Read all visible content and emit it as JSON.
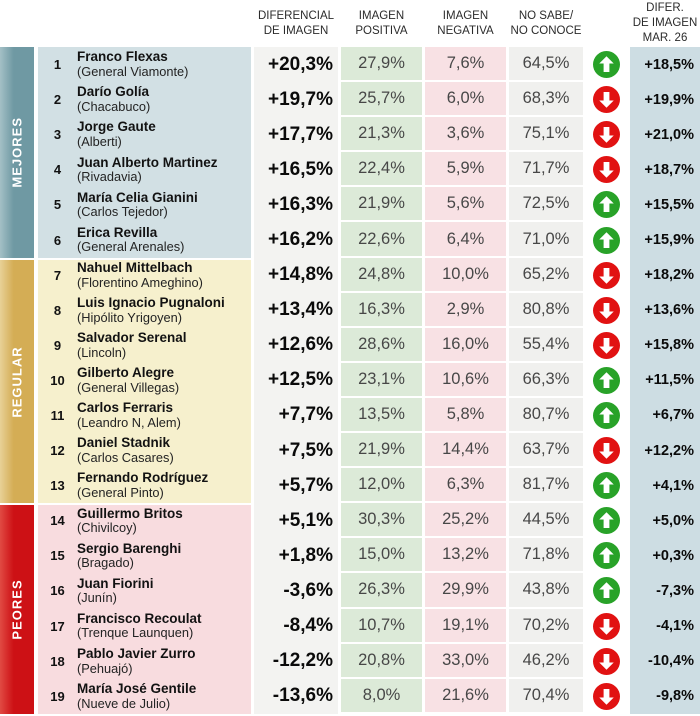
{
  "header": {
    "diferencial": "DIFERENCIAL\nDE IMAGEN",
    "positiva": "IMAGEN\nPOSITIVA",
    "negativa": "IMAGEN\nNEGATIVA",
    "nosabe": "NO SABE/\nNO CONOCE",
    "mar26": "DIFER.\nDE IMAGEN\nMAR. 26"
  },
  "colors": {
    "arrow_up": "#28a228",
    "arrow_down": "#e11212",
    "positiva_bg": "#dcead8",
    "negativa_bg": "#f8e1e4",
    "nosabe_bg": "#f0f0ee",
    "diferencial_bg": "#f3f3f1",
    "mar26_bg": "#cddde3"
  },
  "chart_data": {
    "type": "table",
    "columns": [
      "DIFERENCIAL DE IMAGEN",
      "IMAGEN POSITIVA",
      "IMAGEN NEGATIVA",
      "NO SABE/NO CONOCE",
      "DIFER. DE IMAGEN MAR. 26"
    ],
    "groups": [
      {
        "label": "MEJORES",
        "band_color": "#6f99a3",
        "band_light": "#a4c0c6",
        "row_bg": "#d2e0e4",
        "rows": [
          {
            "rank": "1",
            "name": "Franco Flexas",
            "place": "(General Viamonte)",
            "diferencial": "+20,3%",
            "positiva": "27,9%",
            "negativa": "7,6%",
            "nosabe": "64,5%",
            "trend": "up",
            "mar26": "+18,5%"
          },
          {
            "rank": "2",
            "name": "Darío Golía",
            "place": "(Chacabuco)",
            "diferencial": "+19,7%",
            "positiva": "25,7%",
            "negativa": "6,0%",
            "nosabe": "68,3%",
            "trend": "down",
            "mar26": "+19,9%"
          },
          {
            "rank": "3",
            "name": "Jorge Gaute",
            "place": "(Alberti)",
            "diferencial": "+17,7%",
            "positiva": "21,3%",
            "negativa": "3,6%",
            "nosabe": "75,1%",
            "trend": "down",
            "mar26": "+21,0%"
          },
          {
            "rank": "4",
            "name": "Juan Alberto Martinez",
            "place": "(Rivadavia)",
            "diferencial": "+16,5%",
            "positiva": "22,4%",
            "negativa": "5,9%",
            "nosabe": "71,7%",
            "trend": "down",
            "mar26": "+18,7%"
          },
          {
            "rank": "5",
            "name": "María Celia Gianini",
            "place": "(Carlos Tejedor)",
            "diferencial": "+16,3%",
            "positiva": "21,9%",
            "negativa": "5,6%",
            "nosabe": "72,5%",
            "trend": "up",
            "mar26": "+15,5%"
          },
          {
            "rank": "6",
            "name": "Erica Revilla",
            "place": "(General Arenales)",
            "diferencial": "+16,2%",
            "positiva": "22,6%",
            "negativa": "6,4%",
            "nosabe": "71,0%",
            "trend": "up",
            "mar26": "+15,9%"
          }
        ]
      },
      {
        "label": "REGULAR",
        "band_color": "#d4ad55",
        "band_light": "#e8d197",
        "row_bg": "#f6f0cd",
        "rows": [
          {
            "rank": "7",
            "name": "Nahuel Mittelbach",
            "place": "(Florentino Ameghino)",
            "diferencial": "+14,8%",
            "positiva": "24,8%",
            "negativa": "10,0%",
            "nosabe": "65,2%",
            "trend": "down",
            "mar26": "+18,2%"
          },
          {
            "rank": "8",
            "name": "Luis Ignacio Pugnaloni",
            "place": "(Hipólito Yrigoyen)",
            "diferencial": "+13,4%",
            "positiva": "16,3%",
            "negativa": "2,9%",
            "nosabe": "80,8%",
            "trend": "down",
            "mar26": "+13,6%"
          },
          {
            "rank": "9",
            "name": "Salvador Serenal",
            "place": "(Lincoln)",
            "diferencial": "+12,6%",
            "positiva": "28,6%",
            "negativa": "16,0%",
            "nosabe": "55,4%",
            "trend": "down",
            "mar26": "+15,8%"
          },
          {
            "rank": "10",
            "name": "Gilberto Alegre",
            "place": "(General Villegas)",
            "diferencial": "+12,5%",
            "positiva": "23,1%",
            "negativa": "10,6%",
            "nosabe": "66,3%",
            "trend": "up",
            "mar26": "+11,5%"
          },
          {
            "rank": "11",
            "name": "Carlos Ferraris",
            "place": "(Leandro N, Alem)",
            "diferencial": "+7,7%",
            "positiva": "13,5%",
            "negativa": "5,8%",
            "nosabe": "80,7%",
            "trend": "up",
            "mar26": "+6,7%"
          },
          {
            "rank": "12",
            "name": "Daniel Stadnik",
            "place": "(Carlos Casares)",
            "diferencial": "+7,5%",
            "positiva": "21,9%",
            "negativa": "14,4%",
            "nosabe": "63,7%",
            "trend": "down",
            "mar26": "+12,2%"
          },
          {
            "rank": "13",
            "name": "Fernando Rodríguez",
            "place": "(General Pinto)",
            "diferencial": "+5,7%",
            "positiva": "12,0%",
            "negativa": "6,3%",
            "nosabe": "81,7%",
            "trend": "up",
            "mar26": "+4,1%"
          }
        ]
      },
      {
        "label": "PEORES",
        "band_color": "#cd1115",
        "band_light": "#e14a43",
        "row_bg": "#f8dcdf",
        "rows": [
          {
            "rank": "14",
            "name": "Guillermo Britos",
            "place": "(Chivilcoy)",
            "diferencial": "+5,1%",
            "positiva": "30,3%",
            "negativa": "25,2%",
            "nosabe": "44,5%",
            "trend": "up",
            "mar26": "+5,0%"
          },
          {
            "rank": "15",
            "name": "Sergio Barenghi",
            "place": "(Bragado)",
            "diferencial": "+1,8%",
            "positiva": "15,0%",
            "negativa": "13,2%",
            "nosabe": "71,8%",
            "trend": "up",
            "mar26": "+0,3%"
          },
          {
            "rank": "16",
            "name": "Juan Fiorini",
            "place": "(Junín)",
            "diferencial": "-3,6%",
            "positiva": "26,3%",
            "negativa": "29,9%",
            "nosabe": "43,8%",
            "trend": "up",
            "mar26": "-7,3%"
          },
          {
            "rank": "17",
            "name": "Francisco Recoulat",
            "place": "(Trenque Launquen)",
            "diferencial": "-8,4%",
            "positiva": "10,7%",
            "negativa": "19,1%",
            "nosabe": "70,2%",
            "trend": "down",
            "mar26": "-4,1%"
          },
          {
            "rank": "18",
            "name": "Pablo Javier Zurro",
            "place": "(Pehuajó)",
            "diferencial": "-12,2%",
            "positiva": "20,8%",
            "negativa": "33,0%",
            "nosabe": "46,2%",
            "trend": "down",
            "mar26": "-10,4%"
          },
          {
            "rank": "19",
            "name": "María José Gentile",
            "place": "(Nueve de Julio)",
            "diferencial": "-13,6%",
            "positiva": "8,0%",
            "negativa": "21,6%",
            "nosabe": "70,4%",
            "trend": "down",
            "mar26": "-9,8%"
          }
        ]
      }
    ]
  }
}
